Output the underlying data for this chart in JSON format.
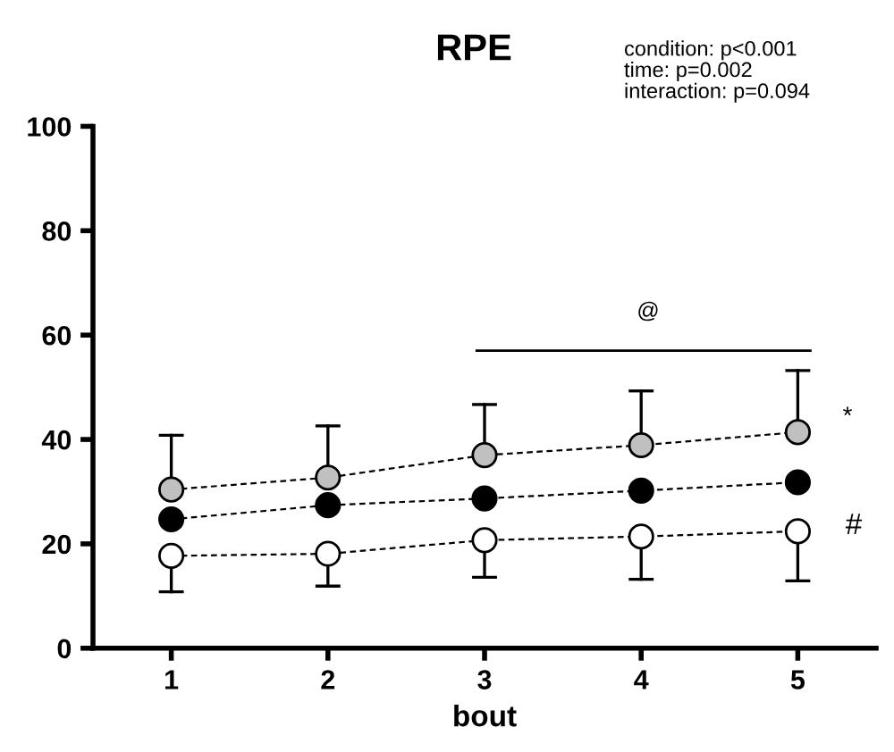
{
  "chart_data": {
    "type": "line",
    "title": "RPE",
    "xlabel": "bout",
    "x": [
      1,
      2,
      3,
      4,
      5
    ],
    "xlim": [
      0.5,
      5.5
    ],
    "xticks": [
      1,
      2,
      3,
      4,
      5
    ],
    "ylim": [
      0,
      100
    ],
    "yticks": [
      0,
      20,
      40,
      60,
      80,
      100
    ],
    "marker": "circle",
    "line_style": "dashed",
    "grid": false,
    "legend": false,
    "series": [
      {
        "color": "#c0c0c0",
        "values": [
          30.4,
          32.7,
          37.0,
          38.9,
          41.4
        ],
        "errors": [
          [
            30.4,
            40.8
          ],
          [
            32.7,
            42.6
          ],
          [
            37.0,
            46.7
          ],
          [
            38.9,
            49.3
          ],
          [
            41.4,
            53.2
          ]
        ]
      },
      {
        "color": "#000000",
        "values": [
          24.7,
          27.4,
          28.7,
          30.2,
          31.8
        ]
      },
      {
        "color": "#ffffff",
        "values": [
          17.7,
          18.1,
          20.7,
          21.4,
          22.4
        ],
        "errors": [
          [
            10.8,
            17.7
          ],
          [
            11.9,
            18.1
          ],
          [
            13.6,
            20.7
          ],
          [
            13.2,
            21.4
          ],
          [
            12.9,
            22.4
          ]
        ]
      },
      {
        "type": "line",
        "color": "#000000",
        "x": [
          2.95,
          5.08
        ],
        "values": [
          57,
          57
        ],
        "line_style": "solid",
        "marker": "none"
      }
    ],
    "annotations": [
      "condition: p<0.001\ntime: p=0.002\ninteraction: p=0.094",
      "@",
      "*",
      "#"
    ]
  }
}
